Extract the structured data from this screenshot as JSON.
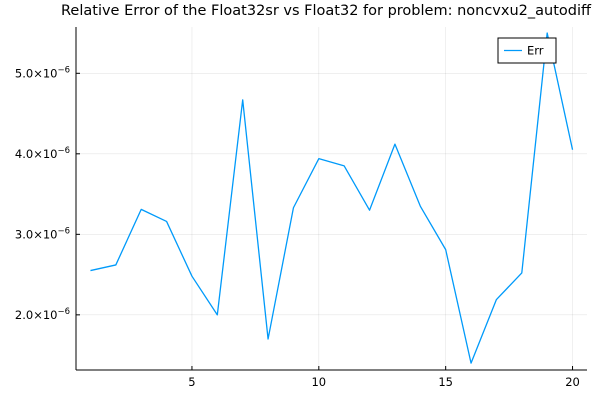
{
  "chart_data": {
    "type": "line",
    "title": "Relative Error of the Float32sr vs Float32 for problem: noncvxu2_autodiff",
    "xlabel": "",
    "ylabel": "",
    "xlim": [
      0.43,
      20.57
    ],
    "ylim": [
      1.315e-06,
      5.575e-06
    ],
    "x_ticks": [
      5,
      10,
      15,
      20
    ],
    "x_tick_labels": [
      "5",
      "10",
      "15",
      "20"
    ],
    "y_ticks": [
      2e-06,
      3e-06,
      4e-06,
      5e-06
    ],
    "y_tick_labels": [
      {
        "mantissa": "2.0",
        "base": "×10",
        "exp": "−6"
      },
      {
        "mantissa": "3.0",
        "base": "×10",
        "exp": "−6"
      },
      {
        "mantissa": "4.0",
        "base": "×10",
        "exp": "−6"
      },
      {
        "mantissa": "5.0",
        "base": "×10",
        "exp": "−6"
      }
    ],
    "grid": true,
    "legend_position": "top-right",
    "series": [
      {
        "name": "Err",
        "color": "#009AFA",
        "x": [
          1,
          2,
          3,
          4,
          5,
          6,
          7,
          8,
          9,
          10,
          11,
          12,
          13,
          14,
          15,
          16,
          17,
          18,
          19,
          20
        ],
        "y": [
          2.55e-06,
          2.62e-06,
          3.31e-06,
          3.16e-06,
          2.48e-06,
          2e-06,
          4.67e-06,
          1.7e-06,
          3.33e-06,
          3.94e-06,
          3.85e-06,
          3.3e-06,
          4.12e-06,
          3.35e-06,
          2.81e-06,
          1.4e-06,
          2.19e-06,
          2.52e-06,
          5.5e-06,
          4.05e-06
        ]
      }
    ]
  }
}
